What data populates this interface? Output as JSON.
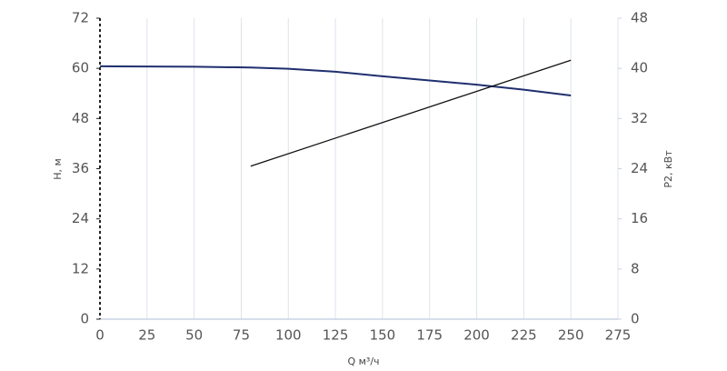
{
  "chart_data": {
    "type": "line",
    "xlabel": "Q м³/ч",
    "ylabel": "H, м",
    "y2label": "P2, кВт",
    "xlim": [
      0,
      275
    ],
    "xticks": [
      0,
      25,
      50,
      75,
      100,
      125,
      150,
      175,
      200,
      225,
      250,
      275
    ],
    "ylim": [
      0,
      72
    ],
    "yticks": [
      0,
      12,
      24,
      36,
      48,
      60,
      72
    ],
    "y2lim": [
      0,
      48
    ],
    "y2ticks": [
      0,
      8,
      16,
      24,
      32,
      40,
      48
    ],
    "grid": true,
    "series": [
      {
        "name": "H",
        "color": "#1f2f6e",
        "x": [
          0,
          50,
          80,
          100,
          125,
          150,
          175,
          200,
          225,
          250
        ],
        "values": [
          60.5,
          60.4,
          60.2,
          59.9,
          59.2,
          58.1,
          57.1,
          56.1,
          54.9,
          53.5
        ]
      },
      {
        "name": "P2",
        "color": "#111111",
        "axis": "y2",
        "x": [
          80,
          250
        ],
        "values": [
          24.4,
          41.3
        ]
      }
    ]
  }
}
